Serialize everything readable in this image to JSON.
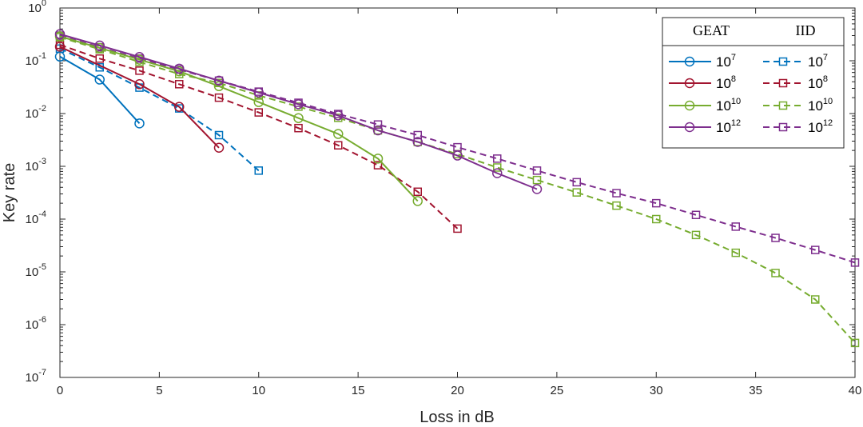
{
  "chart_data": {
    "type": "line",
    "title": "",
    "xlabel": "Loss in dB",
    "ylabel": "Key rate",
    "xlim": [
      0,
      40
    ],
    "ylim_log10": [
      -7,
      0
    ],
    "yscale": "log",
    "x_ticks": [
      0,
      5,
      10,
      15,
      20,
      25,
      30,
      35,
      40
    ],
    "y_tick_exponents": [
      0,
      -1,
      -2,
      -3,
      -4,
      -5,
      -6,
      -7
    ],
    "y_tick_base": "10",
    "grid": false,
    "legend": {
      "position": "top-right",
      "headers": [
        "GEAT",
        "IID"
      ],
      "entries": [
        {
          "base": "10",
          "exp": "7"
        },
        {
          "base": "10",
          "exp": "8"
        },
        {
          "base": "10",
          "exp": "10"
        },
        {
          "base": "10",
          "exp": "12"
        }
      ]
    },
    "series": [
      {
        "name": "GEAT 10^7",
        "group": "GEAT",
        "color": "#0072BD",
        "dashed": false,
        "marker": "circle",
        "x": [
          0,
          2,
          4
        ],
        "y": [
          0.12,
          0.044,
          0.0065
        ]
      },
      {
        "name": "GEAT 10^8",
        "group": "GEAT",
        "color": "#A2142F",
        "dashed": false,
        "marker": "circle",
        "x": [
          0,
          4,
          6,
          8
        ],
        "y": [
          0.185,
          0.036,
          0.0134,
          0.00225
        ]
      },
      {
        "name": "GEAT 10^10",
        "group": "GEAT",
        "color": "#77AC30",
        "dashed": false,
        "marker": "circle",
        "x": [
          0,
          2,
          4,
          6,
          8,
          10,
          12,
          14,
          16,
          18
        ],
        "y": [
          0.29,
          0.175,
          0.105,
          0.063,
          0.033,
          0.0165,
          0.0082,
          0.0041,
          0.0014,
          0.00022
        ]
      },
      {
        "name": "GEAT 10^12",
        "group": "GEAT",
        "color": "#7E2F8E",
        "dashed": false,
        "marker": "circle",
        "x": [
          0,
          2,
          4,
          6,
          8,
          10,
          12,
          14,
          16,
          18,
          20,
          22,
          24
        ],
        "y": [
          0.32,
          0.195,
          0.118,
          0.071,
          0.042,
          0.025,
          0.015,
          0.0092,
          0.0048,
          0.0029,
          0.0016,
          0.00074,
          0.00037
        ]
      },
      {
        "name": "IID 10^7",
        "group": "IID",
        "color": "#0072BD",
        "dashed": true,
        "marker": "square",
        "x": [
          0,
          2,
          4,
          6,
          8,
          10
        ],
        "y": [
          0.17,
          0.075,
          0.031,
          0.0125,
          0.0039,
          0.00083
        ]
      },
      {
        "name": "IID 10^8",
        "group": "IID",
        "color": "#A2142F",
        "dashed": true,
        "marker": "square",
        "x": [
          0,
          2,
          4,
          6,
          8,
          10,
          12,
          14,
          16,
          18,
          20
        ],
        "y": [
          0.2,
          0.11,
          0.065,
          0.036,
          0.02,
          0.0105,
          0.0053,
          0.0025,
          0.00105,
          0.00033,
          6.6e-05
        ]
      },
      {
        "name": "IID 10^10",
        "group": "IID",
        "color": "#77AC30",
        "dashed": true,
        "marker": "square",
        "x": [
          0,
          2,
          4,
          6,
          8,
          10,
          12,
          14,
          16,
          18,
          20,
          22,
          24,
          26,
          28,
          30,
          32,
          34,
          36,
          38,
          40
        ],
        "y": [
          0.28,
          0.165,
          0.095,
          0.056,
          0.038,
          0.022,
          0.0135,
          0.0083,
          0.0048,
          0.0029,
          0.0017,
          0.00095,
          0.00055,
          0.00032,
          0.00018,
          0.0001,
          5e-05,
          2.3e-05,
          9.5e-06,
          3e-06,
          4.5e-07
        ]
      },
      {
        "name": "IID 10^12",
        "group": "IID",
        "color": "#7E2F8E",
        "dashed": true,
        "marker": "square",
        "x": [
          0,
          2,
          4,
          6,
          8,
          10,
          12,
          14,
          16,
          18,
          20,
          22,
          24,
          26,
          28,
          30,
          32,
          34,
          36,
          38,
          40
        ],
        "y": [
          0.3,
          0.18,
          0.11,
          0.068,
          0.042,
          0.026,
          0.016,
          0.0098,
          0.0062,
          0.0039,
          0.0023,
          0.0014,
          0.00083,
          0.0005,
          0.00031,
          0.0002,
          0.00012,
          7.2e-05,
          4.4e-05,
          2.6e-05,
          1.5e-05
        ]
      }
    ]
  }
}
